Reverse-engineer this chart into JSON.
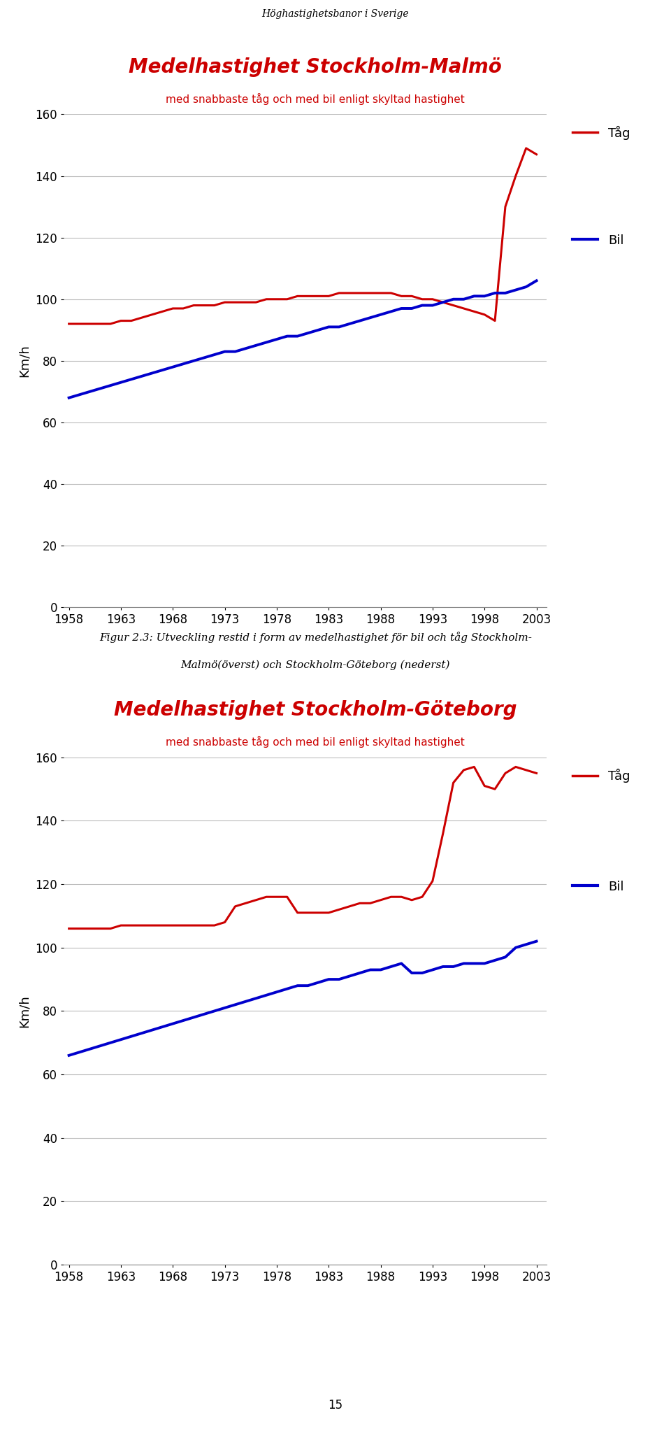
{
  "page_title": "Höghastighetsbanor i Sverige",
  "chart1_title": "Medelhastighet Stockholm-Malmö",
  "chart1_subtitle": "med snabbaste tåg och med bil enligt skyltad hastighet",
  "chart2_title": "Medelhastighet Stockholm-Göteborg",
  "chart2_subtitle": "med snabbaste tåg och med bil enligt skyltad hastighet",
  "caption_line1": "Figur 2.3: Utveckling restid i form av medelhastighet för bil och tåg Stockholm-",
  "caption_line2": "Malmö(överst) och Stockholm-Göteborg (nederst)",
  "ylabel": "Km/h",
  "legend_tag": "Tåg",
  "legend_bil": "Bil",
  "years": [
    1958,
    1959,
    1960,
    1961,
    1962,
    1963,
    1964,
    1965,
    1966,
    1967,
    1968,
    1969,
    1970,
    1971,
    1972,
    1973,
    1974,
    1975,
    1976,
    1977,
    1978,
    1979,
    1980,
    1981,
    1982,
    1983,
    1984,
    1985,
    1986,
    1987,
    1988,
    1989,
    1990,
    1991,
    1992,
    1993,
    1994,
    1995,
    1996,
    1997,
    1998,
    1999,
    2000,
    2001,
    2002,
    2003
  ],
  "malmo_tag": [
    92,
    92,
    92,
    92,
    92,
    93,
    93,
    94,
    95,
    96,
    97,
    97,
    98,
    98,
    98,
    99,
    99,
    99,
    99,
    100,
    100,
    100,
    101,
    101,
    101,
    101,
    102,
    102,
    102,
    102,
    102,
    102,
    101,
    101,
    100,
    100,
    99,
    98,
    97,
    96,
    95,
    93,
    130,
    140,
    149,
    147
  ],
  "malmo_bil": [
    68,
    69,
    70,
    71,
    72,
    73,
    74,
    75,
    76,
    77,
    78,
    79,
    80,
    81,
    82,
    83,
    83,
    84,
    85,
    86,
    87,
    88,
    88,
    89,
    90,
    91,
    91,
    92,
    93,
    94,
    95,
    96,
    97,
    97,
    98,
    98,
    99,
    100,
    100,
    101,
    101,
    102,
    102,
    103,
    104,
    106
  ],
  "gbg_tag": [
    106,
    106,
    106,
    106,
    106,
    107,
    107,
    107,
    107,
    107,
    107,
    107,
    107,
    107,
    107,
    108,
    113,
    114,
    115,
    116,
    116,
    116,
    111,
    111,
    111,
    111,
    112,
    113,
    114,
    114,
    115,
    116,
    116,
    115,
    116,
    121,
    136,
    152,
    156,
    157,
    151,
    150,
    155,
    157,
    156,
    155
  ],
  "gbg_bil": [
    66,
    67,
    68,
    69,
    70,
    71,
    72,
    73,
    74,
    75,
    76,
    77,
    78,
    79,
    80,
    81,
    82,
    83,
    84,
    85,
    86,
    87,
    88,
    88,
    89,
    90,
    90,
    91,
    92,
    93,
    93,
    94,
    95,
    92,
    92,
    93,
    94,
    94,
    95,
    95,
    95,
    96,
    97,
    100,
    101,
    102
  ],
  "color_tag": "#cc0000",
  "color_bil": "#0000cc",
  "ylim": [
    0,
    160
  ],
  "yticks": [
    0,
    20,
    40,
    60,
    80,
    100,
    120,
    140,
    160
  ],
  "xticks": [
    1958,
    1963,
    1968,
    1973,
    1978,
    1983,
    1988,
    1993,
    1998,
    2003
  ],
  "xlim": [
    1957.5,
    2004
  ]
}
